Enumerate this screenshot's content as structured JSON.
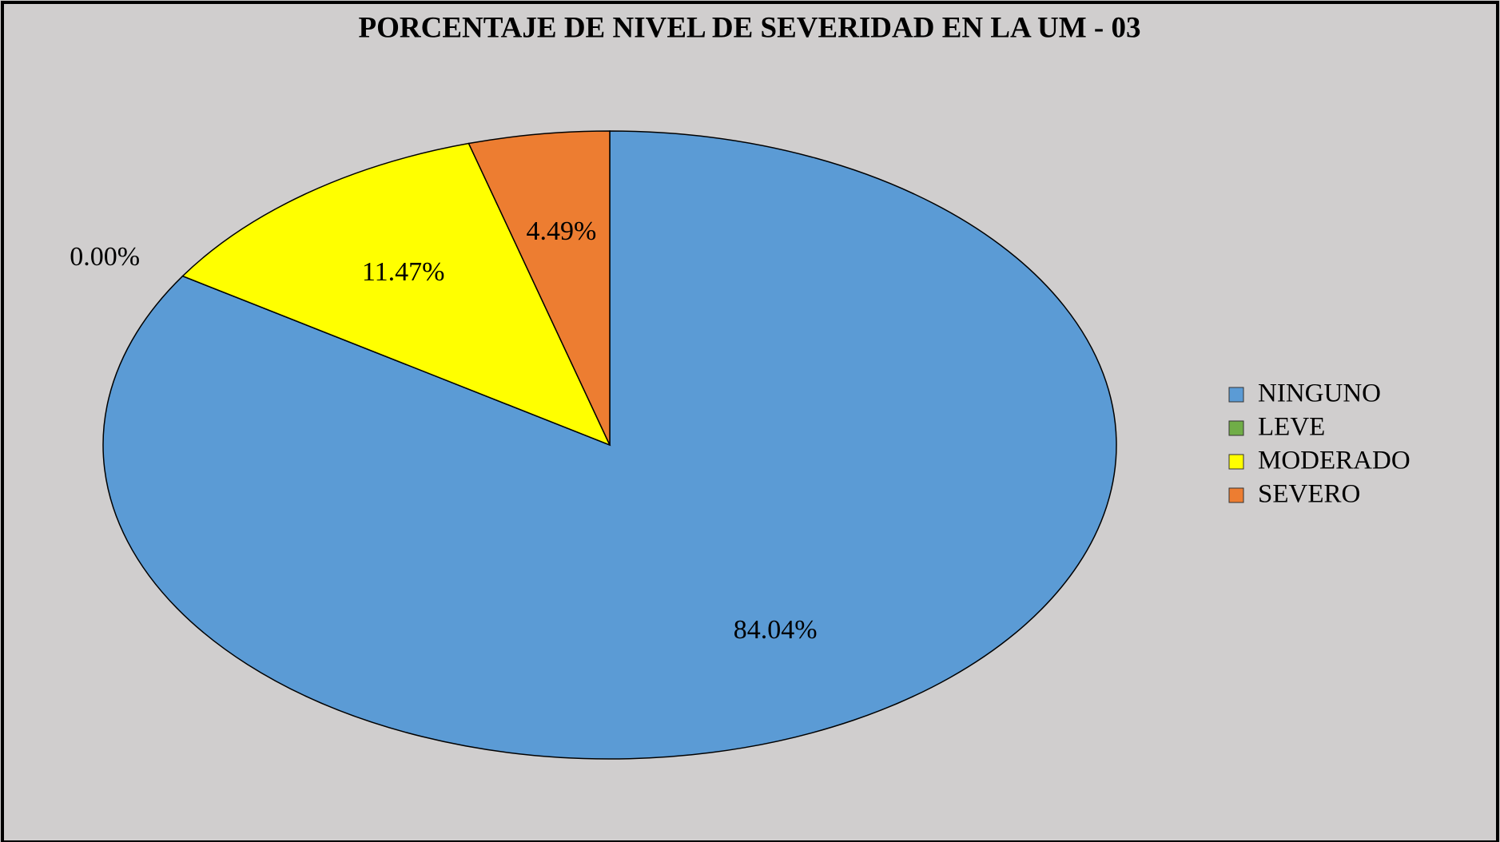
{
  "chart_data": {
    "type": "pie",
    "title": "PORCENTAJE DE NIVEL DE SEVERIDAD EN LA UM - 03",
    "categories": [
      "NINGUNO",
      "LEVE",
      "MODERADO",
      "SEVERO"
    ],
    "values": [
      84.04,
      0,
      11.47,
      4.49
    ],
    "value_labels": [
      "84.04%",
      "0.00%",
      "11.47%",
      "4.49%"
    ],
    "colors": [
      "#5b9bd5",
      "#70ad47",
      "#ffff00",
      "#ed7d31"
    ],
    "legend": "right"
  }
}
